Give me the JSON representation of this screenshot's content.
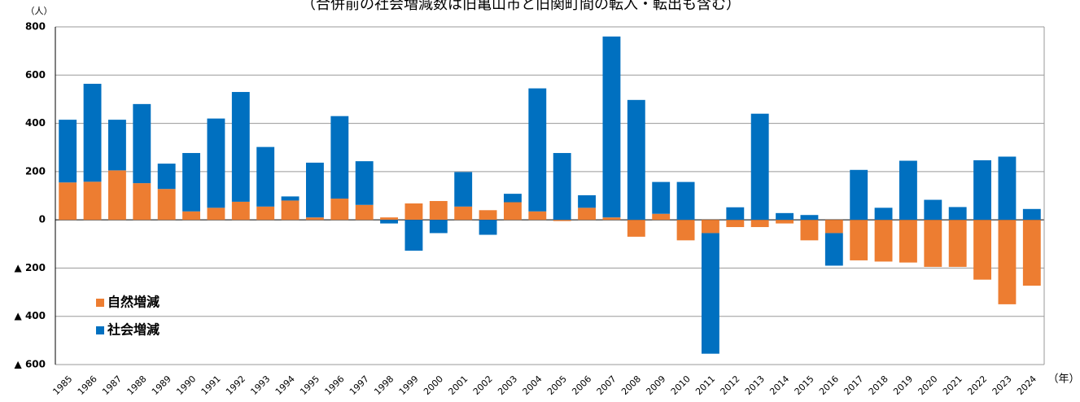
{
  "chart_data": {
    "type": "bar",
    "stacked": true,
    "subtitle": "（合併前の社会増減数は旧亀山市と旧関町間の転入・転出も含む）",
    "y_label": "（人）",
    "x_label": "（年）",
    "categories": [
      "1985",
      "1986",
      "1987",
      "1988",
      "1989",
      "1990",
      "1991",
      "1992",
      "1993",
      "1994",
      "1995",
      "1996",
      "1997",
      "1998",
      "1999",
      "2000",
      "2001",
      "2002",
      "2003",
      "2004",
      "2005",
      "2006",
      "2007",
      "2008",
      "2009",
      "2010",
      "2011",
      "2012",
      "2013",
      "2014",
      "2015",
      "2016",
      "2017",
      "2018",
      "2019",
      "2020",
      "2021",
      "2022",
      "2023",
      "2024"
    ],
    "series": [
      {
        "name": "自然増減",
        "color": "#ed7d31",
        "values": [
          155,
          158,
          205,
          152,
          128,
          35,
          50,
          75,
          55,
          80,
          10,
          88,
          62,
          10,
          68,
          78,
          55,
          40,
          73,
          35,
          -5,
          50,
          10,
          -70,
          25,
          -85,
          -55,
          -30,
          -30,
          -15,
          -85,
          -55,
          -168,
          -173,
          -177,
          -195,
          -195,
          -248,
          -350,
          -273
        ]
      },
      {
        "name": "社会増減",
        "color": "#0070c0",
        "values": [
          260,
          406,
          210,
          328,
          105,
          242,
          370,
          455,
          247,
          17,
          227,
          342,
          181,
          -15,
          -128,
          -55,
          143,
          -62,
          35,
          510,
          277,
          52,
          750,
          497,
          132,
          157,
          -500,
          52,
          440,
          28,
          20,
          -135,
          207,
          50,
          245,
          83,
          53,
          247,
          262,
          45
        ]
      }
    ],
    "ylim": [
      -600,
      800
    ],
    "yticks": [
      {
        "value": -600,
        "label": "▲ 600"
      },
      {
        "value": -400,
        "label": "▲ 400"
      },
      {
        "value": -200,
        "label": "▲ 200"
      },
      0,
      200,
      400,
      600,
      800
    ],
    "grid": true,
    "legend": "lower left"
  }
}
